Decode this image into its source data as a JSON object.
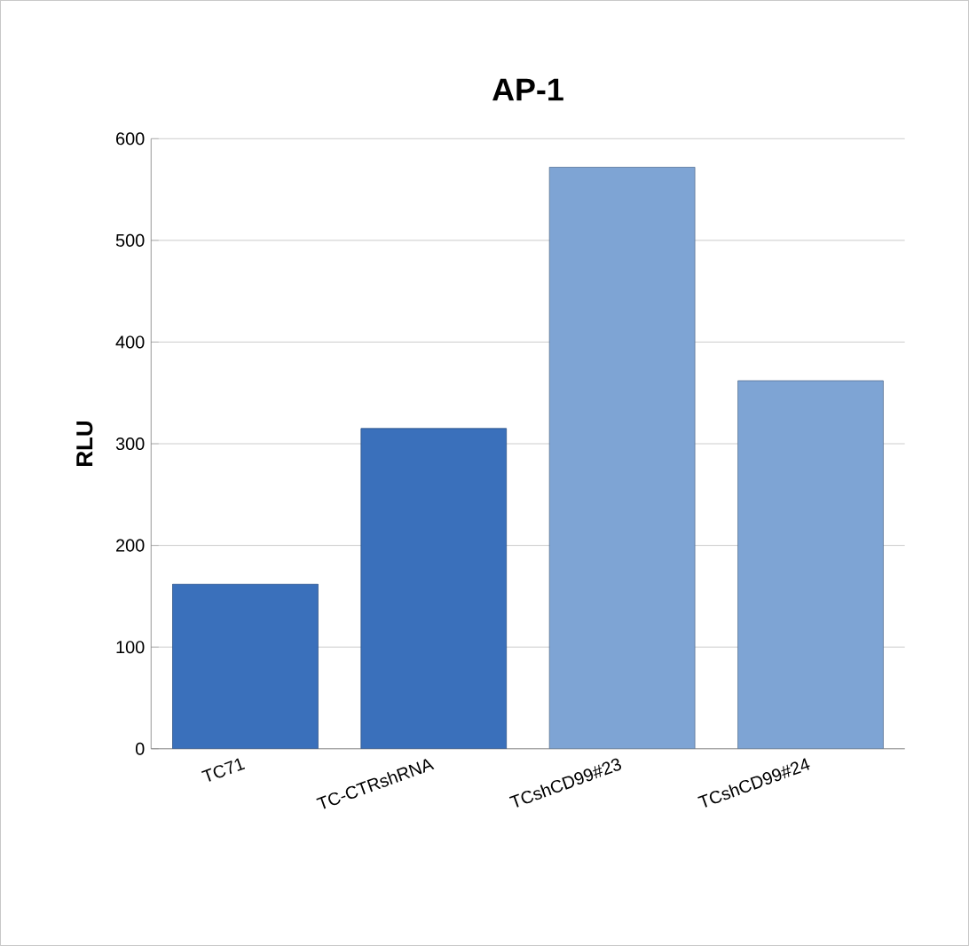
{
  "chart_data": {
    "type": "bar",
    "title": "AP-1",
    "ylabel": "RLU",
    "categories": [
      "TC71",
      "TC-CTRshRNA",
      "TCshCD99#23",
      "TCshCD99#24"
    ],
    "values": [
      162,
      315,
      572,
      362
    ],
    "colors": [
      "#3a70bb",
      "#3a70bb",
      "#7ea4d4",
      "#7ea4d4"
    ],
    "ylim": [
      0,
      600
    ],
    "yticks": [
      0,
      100,
      200,
      300,
      400,
      500,
      600
    ],
    "grid": "y"
  }
}
